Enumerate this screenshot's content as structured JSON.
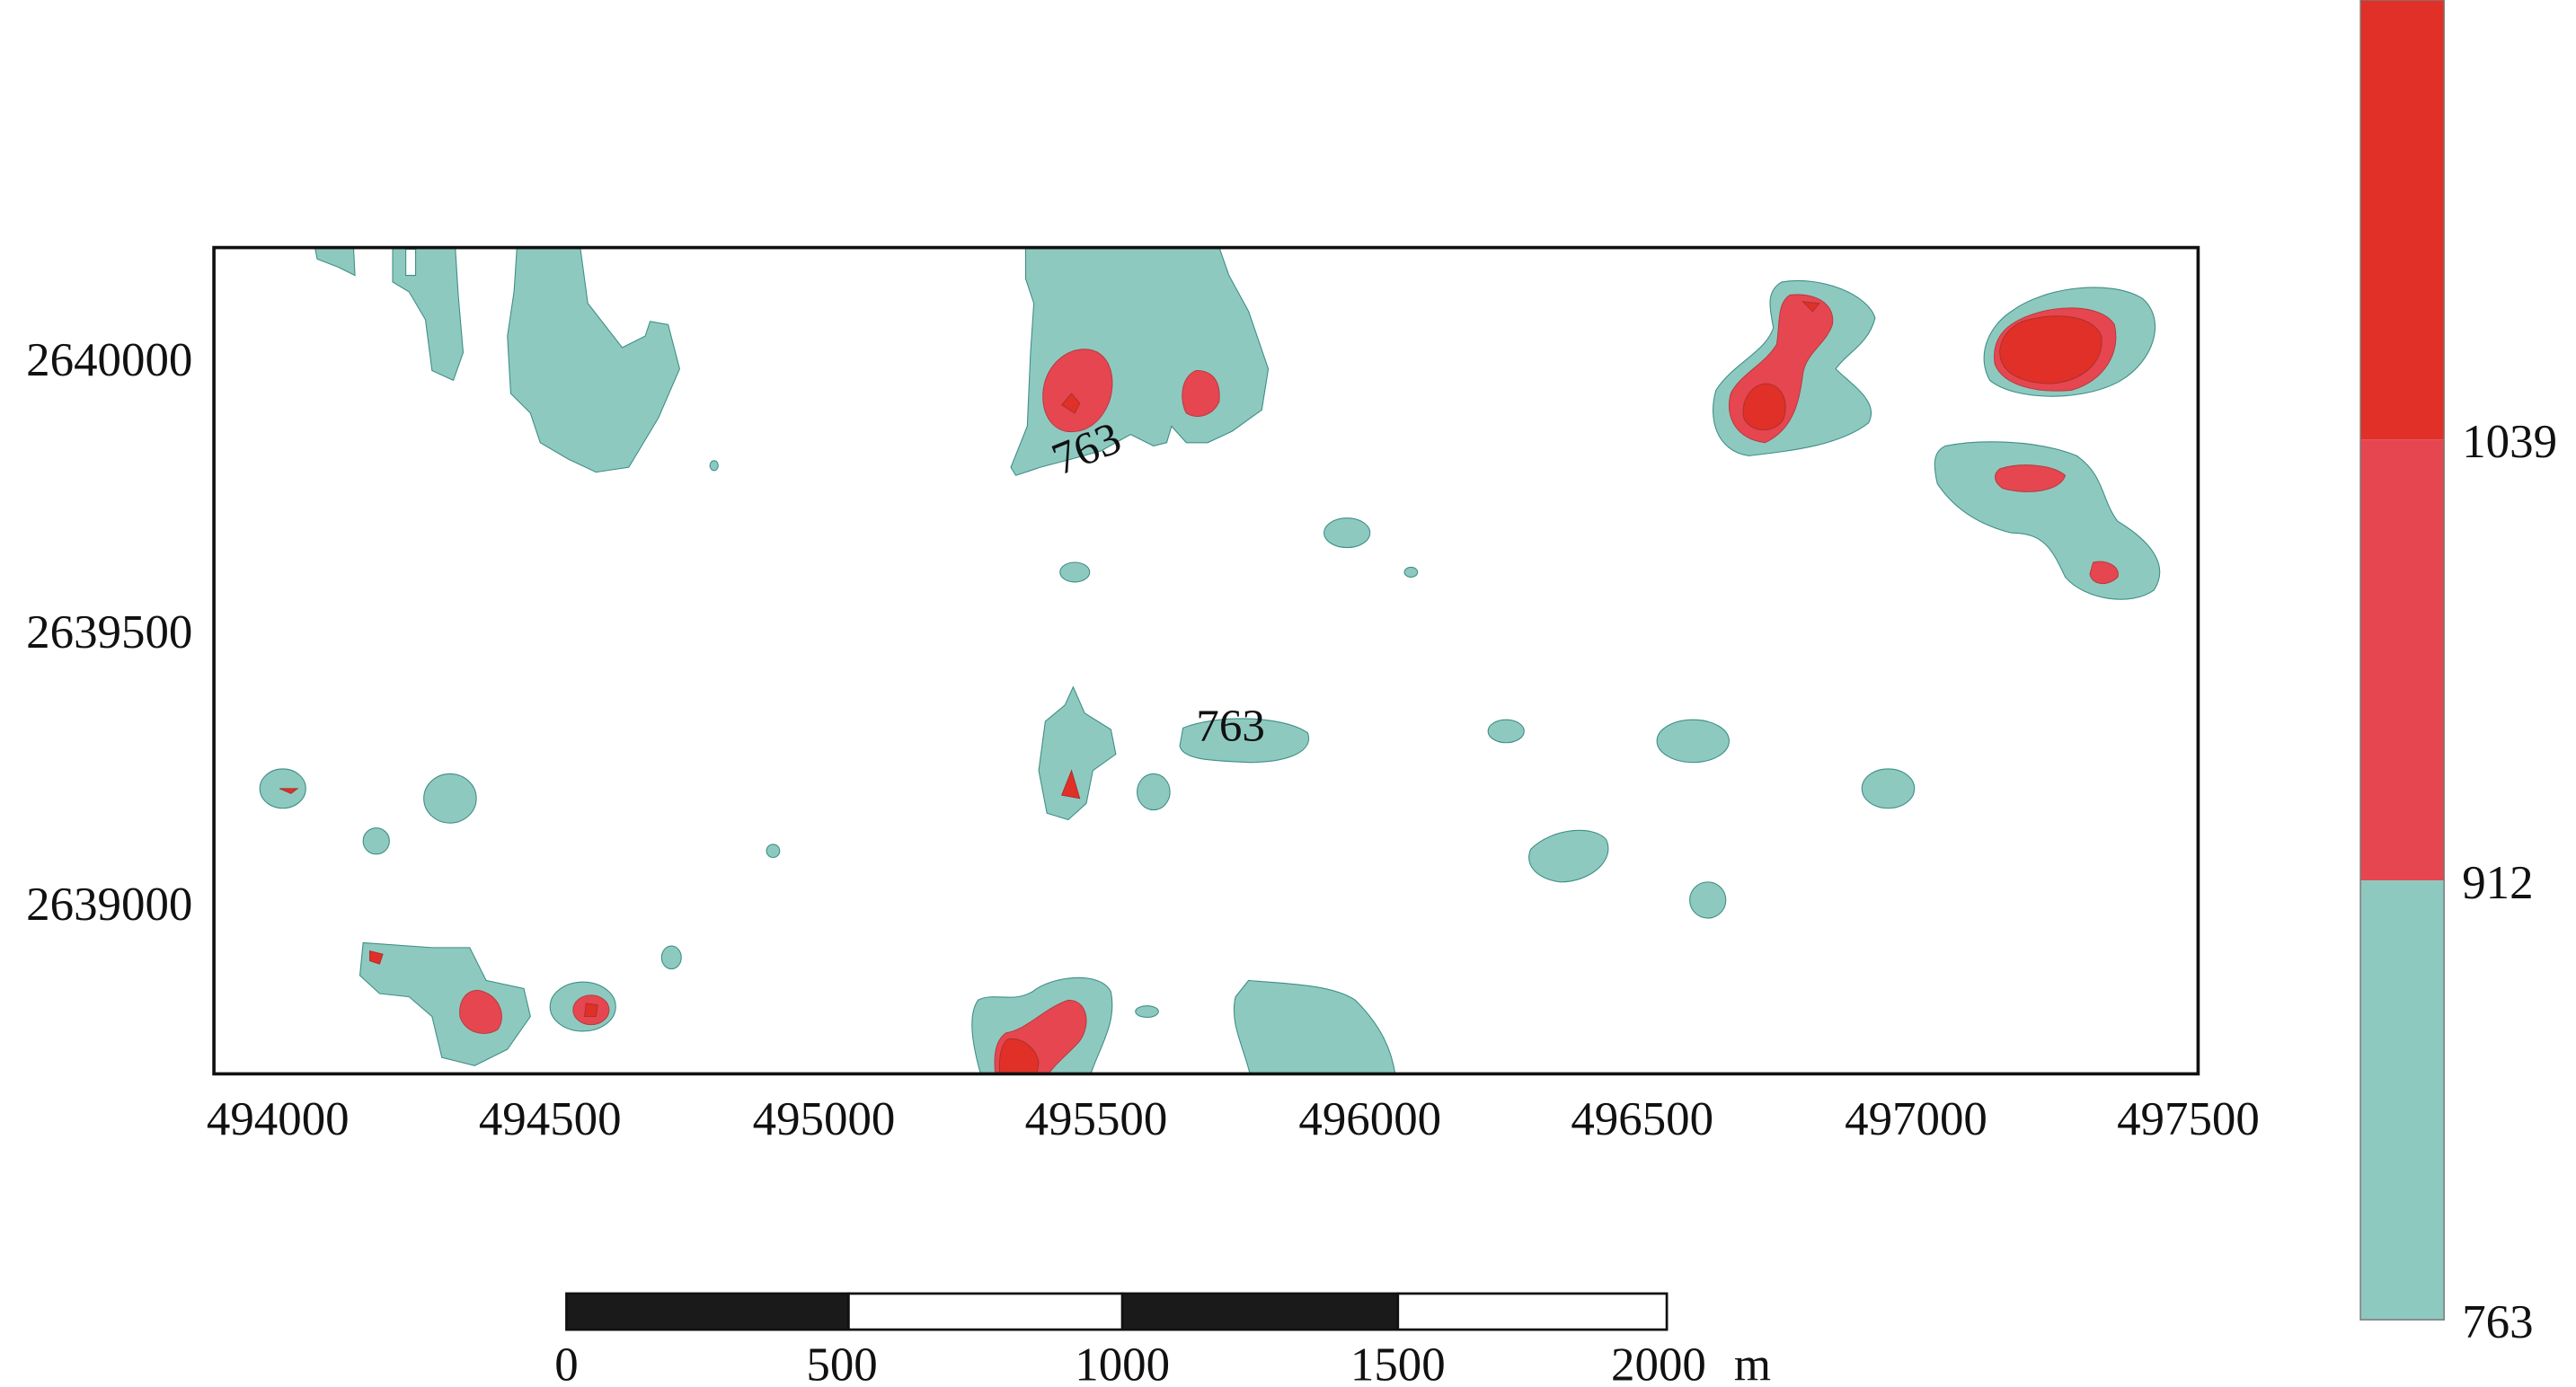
{
  "map": {
    "x_ticks": [
      "494000",
      "494500",
      "495000",
      "495500",
      "496000",
      "496500",
      "497000",
      "497500"
    ],
    "y_ticks": [
      "2640000",
      "2639500",
      "2639000"
    ],
    "contour_labels": [
      "763",
      "763"
    ]
  },
  "legend": {
    "levels": [
      "1039",
      "912",
      "763"
    ],
    "colors": {
      "high": "#e03028",
      "mid": "#e54650",
      "low": "#8ec9c0"
    }
  },
  "scale_bar": {
    "labels": [
      "0",
      "500",
      "1000",
      "1500",
      "2000"
    ],
    "unit": "m"
  }
}
